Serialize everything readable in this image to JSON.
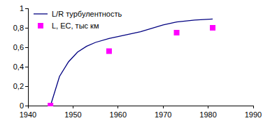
{
  "chart_data": {
    "type": "line",
    "series": [
      {
        "name": "L/R турбулентность",
        "type": "line",
        "color": "#000080",
        "line_style": "solid",
        "x": [
          1945,
          1947,
          1949,
          1951,
          1953,
          1955,
          1958,
          1960,
          1965,
          1970,
          1973,
          1977,
          1981
        ],
        "values": [
          0,
          0.3,
          0.45,
          0.55,
          0.61,
          0.65,
          0.69,
          0.71,
          0.76,
          0.83,
          0.86,
          0.88,
          0.89
        ]
      },
      {
        "name": "L, ЕС, тыс км",
        "type": "scatter",
        "color": "#ff00ff",
        "marker": "square",
        "x": [
          1945,
          1958,
          1973,
          1981
        ],
        "values": [
          0,
          0.56,
          0.75,
          0.8
        ]
      }
    ],
    "xlim": [
      1940,
      1990
    ],
    "xticks": [
      1940,
      1950,
      1960,
      1970,
      1980,
      1990
    ],
    "ylim": [
      0,
      1
    ],
    "yticks": [
      0,
      {
        "value": 0.2,
        "label": "0,2"
      },
      {
        "value": 0.4,
        "label": "0,4"
      },
      {
        "value": 0.6,
        "label": "0,6"
      },
      {
        "value": 0.8,
        "label": "0,8"
      },
      1
    ],
    "grid": false,
    "legend": "upper left"
  }
}
